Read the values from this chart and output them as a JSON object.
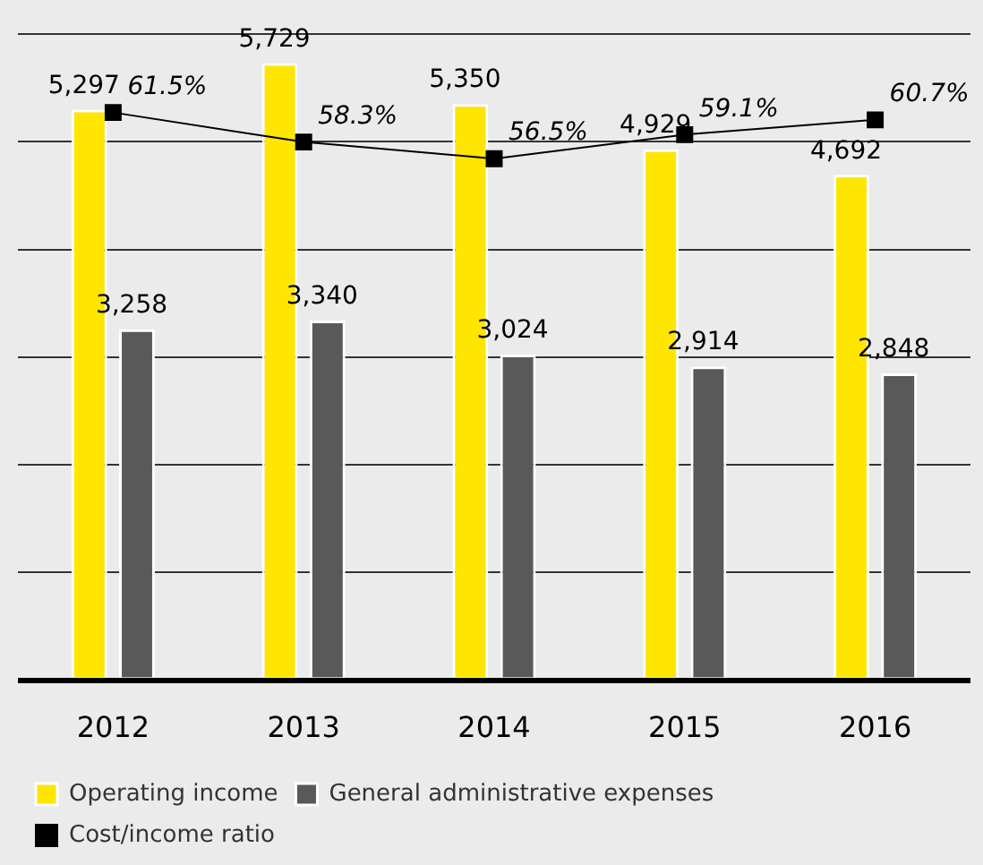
{
  "chart_data": {
    "type": "bar",
    "categories": [
      "2012",
      "2013",
      "2014",
      "2015",
      "2016"
    ],
    "series": [
      {
        "name": "Operating income",
        "color": "#ffe600",
        "values": [
          5297,
          5729,
          5350,
          4929,
          4692
        ],
        "value_labels": [
          "5,297",
          "5,729",
          "5,350",
          "4,929",
          "4,692"
        ]
      },
      {
        "name": "General administrative expenses",
        "color": "#595959",
        "values": [
          3258,
          3340,
          3024,
          2914,
          2848
        ],
        "value_labels": [
          "3,258",
          "3,340",
          "3,024",
          "2,914",
          "2,848"
        ]
      },
      {
        "name": "Cost/income ratio",
        "type": "line",
        "axis": "y2",
        "color": "#000000",
        "values": [
          61.5,
          58.3,
          56.5,
          59.1,
          60.7
        ],
        "value_labels": [
          "61.5%",
          "58.3%",
          "56.5%",
          "59.1%",
          "60.7%"
        ]
      }
    ],
    "tick_labels": "x",
    "grid": "y",
    "legend": "bottom",
    "marker": "square"
  }
}
